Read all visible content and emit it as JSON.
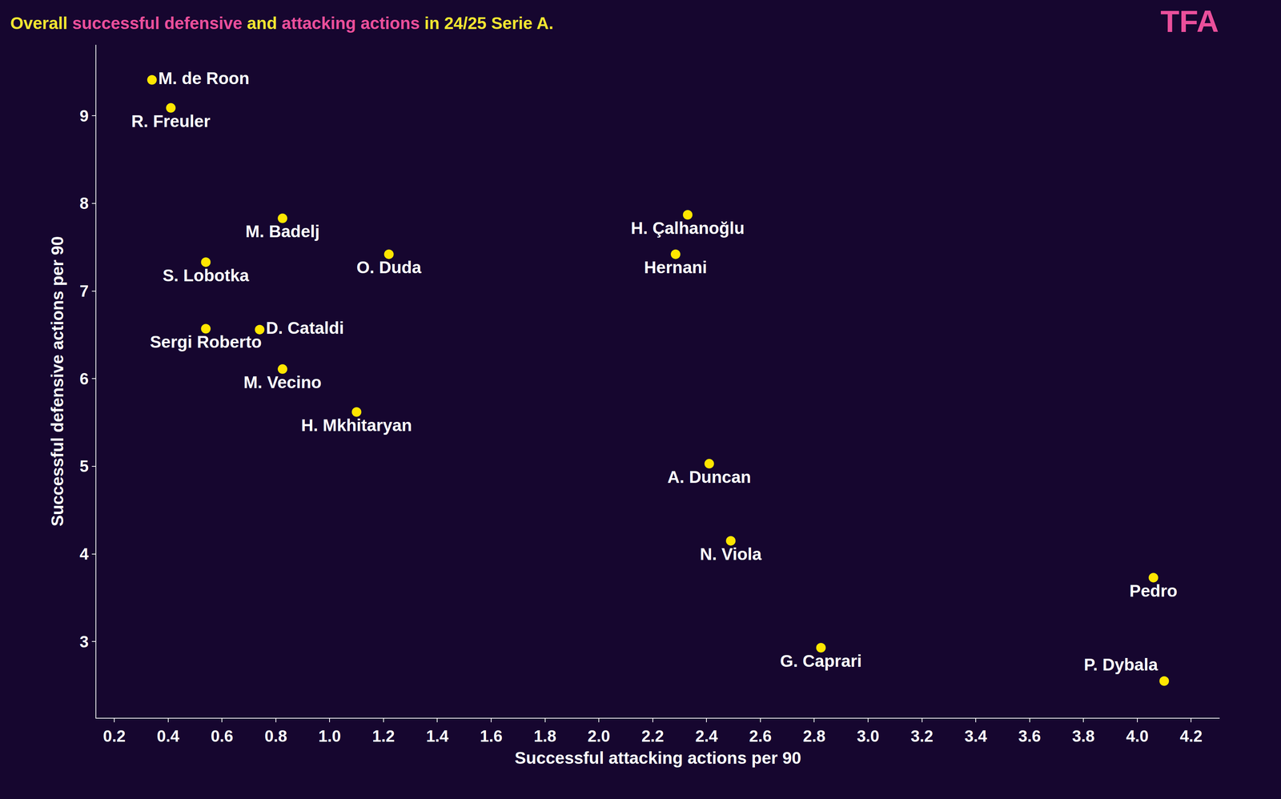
{
  "chart_data": {
    "type": "scatter",
    "title": [
      {
        "text": "Overall ",
        "color": "#f2e531"
      },
      {
        "text": "successful defensive",
        "color": "#ea4f9b"
      },
      {
        "text": " and ",
        "color": "#f2e531"
      },
      {
        "text": "attacking actions",
        "color": "#ea4f9b"
      },
      {
        "text": " in 24/25 Serie A.",
        "color": "#f2e531"
      }
    ],
    "x_label": "Successful attacking actions per 90",
    "y_label": "Successful defensive actions per 90",
    "labels": [
      "M. de Roon",
      "R. Freuler",
      "M. Badelj",
      "S. Lobotka",
      "O. Duda",
      "H. Çalhanoğlu",
      "Hernani",
      "Sergi Roberto",
      "D. Cataldi",
      "M. Vecino",
      "H. Mkhitaryan",
      "A. Duncan",
      "N. Viola",
      "Pedro",
      "G. Caprari",
      "P. Dybala"
    ],
    "x": [
      0.34,
      0.41,
      0.825,
      0.54,
      1.22,
      2.33,
      2.285,
      0.54,
      0.74,
      0.825,
      1.1,
      2.41,
      2.49,
      4.06,
      2.825,
      4.1
    ],
    "y": [
      9.41,
      9.09,
      7.83,
      7.33,
      7.42,
      7.87,
      7.42,
      6.57,
      6.56,
      6.11,
      5.62,
      5.03,
      4.15,
      3.73,
      2.93,
      2.55
    ],
    "color": "#ffe600",
    "xlim": [
      0.133,
      4.306
    ],
    "ylim": [
      2.13,
      9.81
    ],
    "xticks": [
      0.2,
      0.4,
      0.6,
      0.8,
      {
        "value": 1,
        "label": "1.0"
      },
      1.2,
      1.4,
      1.6,
      1.8,
      {
        "value": 2,
        "label": "2.0"
      },
      2.2,
      2.4,
      2.6,
      2.8,
      {
        "value": 3,
        "label": "3.0"
      },
      3.2,
      3.4,
      3.6,
      3.8,
      {
        "value": 4,
        "label": "4.0"
      },
      4.2
    ],
    "yticks": [
      3,
      4,
      5,
      6,
      7,
      8,
      9
    ],
    "grid": false,
    "annotations": [
      {
        "text": "TFA",
        "color": "#ea4f9b"
      }
    ]
  }
}
